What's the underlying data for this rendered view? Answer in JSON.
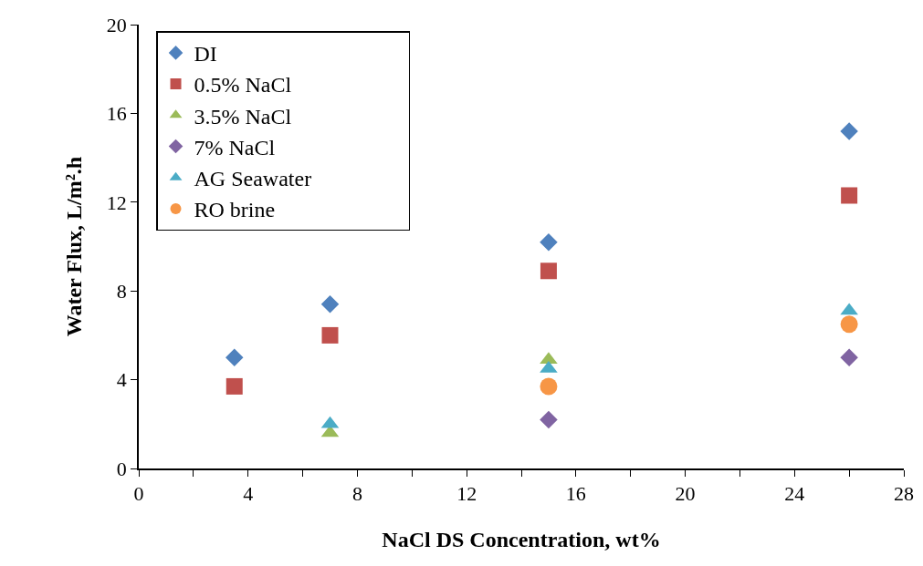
{
  "chart_data": {
    "type": "scatter",
    "xlabel": "NaCl DS Concentration, wt%",
    "ylabel": "Water Flux, L/m².h",
    "xlim": [
      0,
      28
    ],
    "xticks": [
      0,
      {
        "value": 2,
        "label": null
      },
      4,
      {
        "value": 6,
        "label": null
      },
      8,
      {
        "value": 10,
        "label": null
      },
      12,
      {
        "value": 14,
        "label": null
      },
      16,
      {
        "value": 18,
        "label": null
      },
      20,
      {
        "value": 22,
        "label": null
      },
      24,
      {
        "value": 26,
        "label": null
      },
      28
    ],
    "ylim": [
      0,
      20
    ],
    "yticks": [
      0,
      4,
      8,
      12,
      16,
      20
    ],
    "legend": "top",
    "grid": false,
    "series": [
      {
        "name": "DI",
        "color": "#4f81bd",
        "marker": "diamond",
        "x": [
          3.5,
          7,
          15,
          26
        ],
        "values": [
          5.0,
          7.4,
          10.2,
          15.2
        ]
      },
      {
        "name": "0.5% NaCl",
        "color": "#c0504d",
        "marker": "square",
        "x": [
          3.5,
          7,
          15,
          26
        ],
        "values": [
          3.7,
          6.0,
          8.9,
          12.3
        ]
      },
      {
        "name": "3.5% NaCl",
        "color": "#9bbb59",
        "marker": "triangle",
        "x": [
          7,
          15
        ],
        "values": [
          1.6,
          4.9
        ]
      },
      {
        "name": "7% NaCl",
        "color": "#8064a2",
        "marker": "diamond",
        "x": [
          15,
          26
        ],
        "values": [
          2.2,
          5.0
        ]
      },
      {
        "name": "AG Seawater",
        "color": "#4bacc6",
        "marker": "triangle",
        "x": [
          7,
          15,
          26
        ],
        "values": [
          2.0,
          4.5,
          7.1
        ]
      },
      {
        "name": "RO brine",
        "color": "#f79646",
        "marker": "circle",
        "x": [
          15,
          26
        ],
        "values": [
          3.7,
          6.5
        ]
      }
    ]
  }
}
